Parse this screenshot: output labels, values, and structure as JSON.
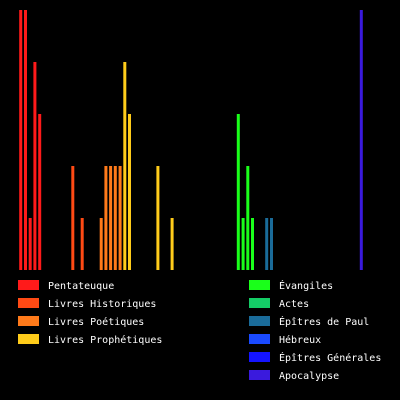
{
  "chart_data": {
    "type": "bar",
    "x_range": [
      0,
      78
    ],
    "ylim": [
      0,
      100
    ],
    "series": [
      {
        "name": "Pentateuque",
        "color": "#ff1a1a",
        "values": [
          [
            1,
            100
          ],
          [
            2,
            100
          ],
          [
            3,
            20
          ],
          [
            4,
            80
          ],
          [
            5,
            60
          ]
        ]
      },
      {
        "name": "Livres Historiques",
        "color": "#ff4a14",
        "values": [
          [
            12,
            40
          ],
          [
            14,
            20
          ]
        ]
      },
      {
        "name": "Livres Poétiques",
        "color": "#ff7a1a",
        "values": [
          [
            18,
            20
          ],
          [
            19,
            40
          ],
          [
            20,
            40
          ],
          [
            21,
            40
          ],
          [
            22,
            40
          ]
        ]
      },
      {
        "name": "Livres Prophétiques",
        "color": "#ffcc1a",
        "values": [
          [
            23,
            80
          ],
          [
            24,
            60
          ],
          [
            30,
            40
          ],
          [
            33,
            20
          ]
        ]
      },
      {
        "name": "Évangiles",
        "color": "#1aff1a",
        "values": [
          [
            47,
            60
          ],
          [
            48,
            20
          ],
          [
            49,
            40
          ],
          [
            50,
            20
          ]
        ]
      },
      {
        "name": "Actes",
        "color": "#14cc66",
        "values": []
      },
      {
        "name": "Épîtres de Paul",
        "color": "#1a6b99",
        "values": [
          [
            53,
            20
          ],
          [
            54,
            20
          ]
        ]
      },
      {
        "name": "Hébreux",
        "color": "#1a4aff",
        "values": []
      },
      {
        "name": "Épîtres Générales",
        "color": "#1414ff",
        "values": []
      },
      {
        "name": "Apocalypse",
        "color": "#3a1add",
        "values": [
          [
            73,
            100
          ]
        ]
      }
    ],
    "legend_columns": [
      [
        0,
        1,
        2,
        3
      ],
      [
        4,
        5,
        6,
        7,
        8,
        9
      ]
    ],
    "grid": false,
    "title": "",
    "xlabel": "",
    "ylabel": ""
  }
}
